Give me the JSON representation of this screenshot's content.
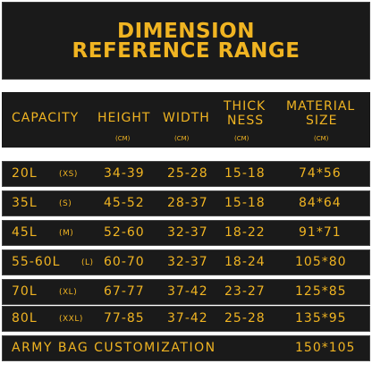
{
  "title": {
    "line1": "DIMENSION",
    "line2": "REFERENCE RANGE"
  },
  "header": {
    "capacity": "CAPACITY",
    "height": "HEIGHT",
    "width": "WIDTH",
    "thickness_1": "THICK",
    "thickness_2": "NESS",
    "material_1": "MATERIAL",
    "material_2": "SIZE",
    "unit": "(CM)"
  },
  "rows": [
    {
      "capacity": "20L",
      "size": "(XS)",
      "height": "34-39",
      "width": "25-28",
      "thickness": "15-18",
      "material": "74*56"
    },
    {
      "capacity": "35L",
      "size": "(S)",
      "height": "45-52",
      "width": "28-37",
      "thickness": "15-18",
      "material": "84*64"
    },
    {
      "capacity": "45L",
      "size": "(M)",
      "height": "52-60",
      "width": "32-37",
      "thickness": "18-22",
      "material": "91*71"
    },
    {
      "capacity": "55-60L",
      "size": "(L)",
      "height": "60-70",
      "width": "32-37",
      "thickness": "18-24",
      "material": "105*80"
    },
    {
      "capacity": "70L",
      "size": "(XL)",
      "height": "67-77",
      "width": "37-42",
      "thickness": "23-27",
      "material": "125*85"
    },
    {
      "capacity": "80L",
      "size": "(XXL)",
      "height": "77-85",
      "width": "37-42",
      "thickness": "25-28",
      "material": "135*95"
    }
  ],
  "footer": {
    "label": "ARMY BAG CUSTOMIZATION",
    "material": "150*105"
  },
  "colors": {
    "accent": "#f0b422",
    "background": "#1a1a1a"
  }
}
